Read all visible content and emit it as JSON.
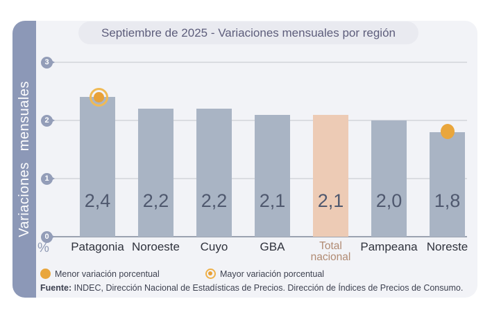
{
  "title": "Septiembre de 2025 - Variaciones mensuales por región",
  "sidebar": {
    "label": "Variaciones mensuales"
  },
  "axis": {
    "percent_symbol": "%"
  },
  "chart_data": {
    "type": "bar",
    "title": "Septiembre de 2025 - Variaciones mensuales por región",
    "ylabel": "Variaciones mensuales",
    "xlabel": "",
    "ylim": [
      0,
      3
    ],
    "yticks": [
      0,
      1,
      2,
      3
    ],
    "grid": true,
    "unit": "%",
    "categories": [
      "Patagonia",
      "Noroeste",
      "Cuyo",
      "GBA",
      "Total nacional",
      "Pampeana",
      "Noreste"
    ],
    "values": [
      2.4,
      2.2,
      2.2,
      2.1,
      2.1,
      2.0,
      1.8
    ],
    "regions": [
      {
        "label": "Patagonia",
        "value": 2.4,
        "value_label": "2,4",
        "marker": "mayor"
      },
      {
        "label": "Noroeste",
        "value": 2.2,
        "value_label": "2,2"
      },
      {
        "label": "Cuyo",
        "value": 2.2,
        "value_label": "2,2"
      },
      {
        "label": "GBA",
        "value": 2.1,
        "value_label": "2,1"
      },
      {
        "label": "Total nacional",
        "label_lines": [
          "Total",
          "nacional"
        ],
        "value": 2.1,
        "value_label": "2,1",
        "highlight": true
      },
      {
        "label": "Pampeana",
        "value": 2.0,
        "value_label": "2,0"
      },
      {
        "label": "Noreste",
        "value": 1.8,
        "value_label": "1,8",
        "marker": "menor"
      }
    ],
    "colors": {
      "bar": "#a9b4c4",
      "highlight_bar": "#edcbb5",
      "marker": "#e9a63c",
      "marker_ring": "#f0ba55",
      "sidebar": "#8c98b7",
      "card_background": "#f2f3f7"
    }
  },
  "legend": {
    "menor_label": "Menor variación porcentual",
    "mayor_label": "Mayor variación porcentual"
  },
  "footer": {
    "source_label": "Fuente:",
    "source_text": "INDEC, Dirección Nacional de Estadísticas de Precios. Dirección de Índices de Precios de Consumo."
  }
}
